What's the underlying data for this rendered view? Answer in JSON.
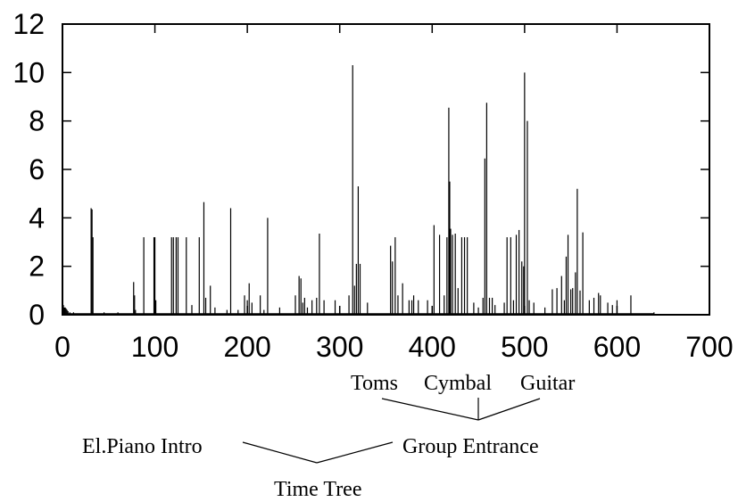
{
  "chart_data": {
    "type": "bar",
    "title": "",
    "xlabel": "",
    "ylabel": "",
    "xlim": [
      0,
      700
    ],
    "ylim": [
      0,
      12
    ],
    "xticks": [
      0,
      100,
      200,
      300,
      400,
      500,
      600,
      700
    ],
    "yticks": [
      0,
      2,
      4,
      6,
      8,
      10,
      12
    ],
    "grid": false,
    "bar_color": "#000000",
    "x": [
      1,
      2,
      3,
      4,
      5,
      6,
      8,
      12,
      31,
      32,
      33,
      45,
      60,
      77,
      78,
      79,
      88,
      99,
      100,
      101,
      118,
      120,
      123,
      125,
      134,
      140,
      148,
      153,
      155,
      160,
      165,
      178,
      182,
      190,
      197,
      200,
      202,
      205,
      214,
      218,
      222,
      235,
      252,
      256,
      258,
      260,
      262,
      265,
      270,
      275,
      278,
      283,
      295,
      310,
      314,
      316,
      318,
      320,
      322,
      330,
      355,
      357,
      360,
      363,
      368,
      375,
      378,
      380,
      385,
      395,
      402,
      408,
      413,
      416,
      418,
      419,
      420,
      422,
      425,
      428,
      432,
      435,
      438,
      445,
      450,
      455,
      457,
      459,
      462,
      465,
      468,
      478,
      481,
      485,
      488,
      491,
      494,
      497,
      499,
      500,
      503,
      505,
      510,
      522,
      530,
      535,
      540,
      543,
      545,
      547,
      550,
      552,
      555,
      557,
      560,
      563,
      570,
      575,
      580,
      582,
      590,
      595,
      600,
      615,
      640
    ],
    "values": [
      0.4,
      0.3,
      0.3,
      0.25,
      0.2,
      0.15,
      0.1,
      0.1,
      4.4,
      4.35,
      3.2,
      0.1,
      0.1,
      1.35,
      0.8,
      0.2,
      3.2,
      3.2,
      3.2,
      0.6,
      3.2,
      3.2,
      3.2,
      3.2,
      3.2,
      0.4,
      3.2,
      4.65,
      0.7,
      1.2,
      0.3,
      0.2,
      4.4,
      0.2,
      0.8,
      0.6,
      1.3,
      0.5,
      0.8,
      0.2,
      4.0,
      0.3,
      0.8,
      1.6,
      1.5,
      0.5,
      0.7,
      0.3,
      0.6,
      0.7,
      3.35,
      0.6,
      0.6,
      0.8,
      10.3,
      1.2,
      2.1,
      5.3,
      2.1,
      0.5,
      2.85,
      2.2,
      3.2,
      0.8,
      1.3,
      0.6,
      0.6,
      0.8,
      0.6,
      0.6,
      3.7,
      3.3,
      0.8,
      3.2,
      8.55,
      5.5,
      3.55,
      3.3,
      3.35,
      1.1,
      3.2,
      3.2,
      3.2,
      0.5,
      0.3,
      0.7,
      6.45,
      8.75,
      0.7,
      0.7,
      0.4,
      0.5,
      3.2,
      3.2,
      0.6,
      3.3,
      3.5,
      2.2,
      2.0,
      10.0,
      8.0,
      0.6,
      0.5,
      0.3,
      1.05,
      1.1,
      1.6,
      0.6,
      2.4,
      3.3,
      1.05,
      1.1,
      1.75,
      5.2,
      1.0,
      3.4,
      0.6,
      0.7,
      0.9,
      0.8,
      0.5,
      0.4,
      0.6,
      0.8,
      0.1
    ],
    "annotations": {
      "level1": [
        "Toms",
        "Cymbal",
        "Guitar"
      ],
      "level2_left": "El.Piano Intro",
      "level2_right": "Group Entrance",
      "root": "Time Tree"
    }
  }
}
